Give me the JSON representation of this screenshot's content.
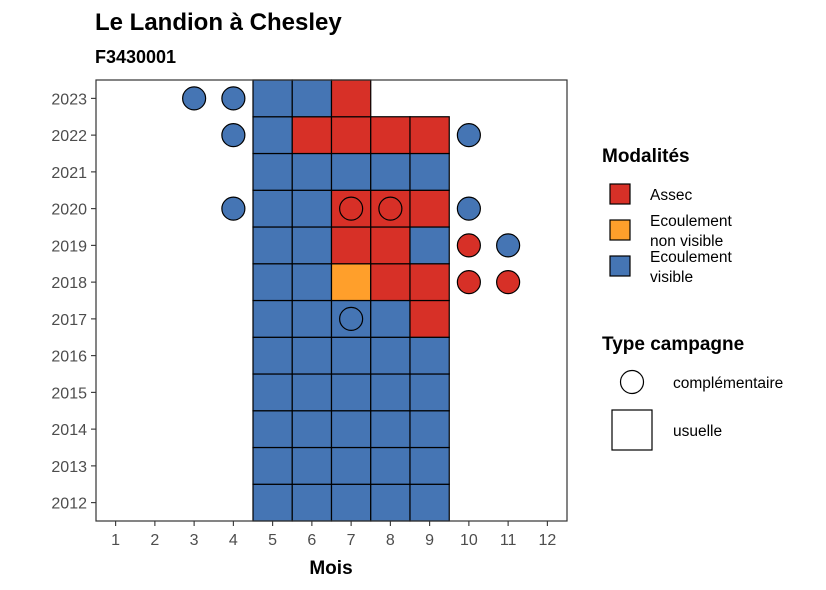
{
  "chart_data": {
    "type": "heatmap",
    "title": "Le Landion à Chesley",
    "subtitle": "F3430001",
    "xlabel": "Mois",
    "ylabel": "",
    "x_ticks": [
      "1",
      "2",
      "3",
      "4",
      "5",
      "6",
      "7",
      "8",
      "9",
      "10",
      "11",
      "12"
    ],
    "y_ticks": [
      "2012",
      "2013",
      "2014",
      "2015",
      "2016",
      "2017",
      "2018",
      "2019",
      "2020",
      "2021",
      "2022",
      "2023"
    ],
    "xlim": [
      0.5,
      12.5
    ],
    "ylim": [
      2011.5,
      2023.5
    ],
    "modalites": [
      {
        "key": "assec",
        "label": [
          "Assec"
        ],
        "color": "#D73027"
      },
      {
        "key": "non_visible",
        "label": [
          "Ecoulement",
          "non visible"
        ],
        "color": "#FF9F2B"
      },
      {
        "key": "visible",
        "label": [
          "Ecoulement",
          "visible"
        ],
        "color": "#4575B4"
      }
    ],
    "types_campagne": [
      {
        "key": "complementaire",
        "label": "complémentaire",
        "shape": "circle"
      },
      {
        "key": "usuelle",
        "label": "usuelle",
        "shape": "square"
      }
    ],
    "legend_titles": {
      "modalites": "Modalités",
      "type": "Type campagne"
    },
    "legend_position": "right",
    "grid": false,
    "observations": [
      {
        "year": 2012,
        "month": 5,
        "modalite": "visible",
        "type": "usuelle"
      },
      {
        "year": 2012,
        "month": 6,
        "modalite": "visible",
        "type": "usuelle"
      },
      {
        "year": 2012,
        "month": 7,
        "modalite": "visible",
        "type": "usuelle"
      },
      {
        "year": 2012,
        "month": 8,
        "modalite": "visible",
        "type": "usuelle"
      },
      {
        "year": 2012,
        "month": 9,
        "modalite": "visible",
        "type": "usuelle"
      },
      {
        "year": 2013,
        "month": 5,
        "modalite": "visible",
        "type": "usuelle"
      },
      {
        "year": 2013,
        "month": 6,
        "modalite": "visible",
        "type": "usuelle"
      },
      {
        "year": 2013,
        "month": 7,
        "modalite": "visible",
        "type": "usuelle"
      },
      {
        "year": 2013,
        "month": 8,
        "modalite": "visible",
        "type": "usuelle"
      },
      {
        "year": 2013,
        "month": 9,
        "modalite": "visible",
        "type": "usuelle"
      },
      {
        "year": 2014,
        "month": 5,
        "modalite": "visible",
        "type": "usuelle"
      },
      {
        "year": 2014,
        "month": 6,
        "modalite": "visible",
        "type": "usuelle"
      },
      {
        "year": 2014,
        "month": 7,
        "modalite": "visible",
        "type": "usuelle"
      },
      {
        "year": 2014,
        "month": 8,
        "modalite": "visible",
        "type": "usuelle"
      },
      {
        "year": 2014,
        "month": 9,
        "modalite": "visible",
        "type": "usuelle"
      },
      {
        "year": 2015,
        "month": 5,
        "modalite": "visible",
        "type": "usuelle"
      },
      {
        "year": 2015,
        "month": 6,
        "modalite": "visible",
        "type": "usuelle"
      },
      {
        "year": 2015,
        "month": 7,
        "modalite": "visible",
        "type": "usuelle"
      },
      {
        "year": 2015,
        "month": 8,
        "modalite": "visible",
        "type": "usuelle"
      },
      {
        "year": 2015,
        "month": 9,
        "modalite": "visible",
        "type": "usuelle"
      },
      {
        "year": 2016,
        "month": 5,
        "modalite": "visible",
        "type": "usuelle"
      },
      {
        "year": 2016,
        "month": 6,
        "modalite": "visible",
        "type": "usuelle"
      },
      {
        "year": 2016,
        "month": 7,
        "modalite": "visible",
        "type": "usuelle"
      },
      {
        "year": 2016,
        "month": 8,
        "modalite": "visible",
        "type": "usuelle"
      },
      {
        "year": 2016,
        "month": 9,
        "modalite": "visible",
        "type": "usuelle"
      },
      {
        "year": 2017,
        "month": 5,
        "modalite": "visible",
        "type": "usuelle"
      },
      {
        "year": 2017,
        "month": 6,
        "modalite": "visible",
        "type": "usuelle"
      },
      {
        "year": 2017,
        "month": 7,
        "modalite": "visible",
        "type": "usuelle"
      },
      {
        "year": 2017,
        "month": 7,
        "modalite": "visible",
        "type": "complementaire"
      },
      {
        "year": 2017,
        "month": 8,
        "modalite": "visible",
        "type": "usuelle"
      },
      {
        "year": 2017,
        "month": 9,
        "modalite": "assec",
        "type": "usuelle"
      },
      {
        "year": 2018,
        "month": 5,
        "modalite": "visible",
        "type": "usuelle"
      },
      {
        "year": 2018,
        "month": 6,
        "modalite": "visible",
        "type": "usuelle"
      },
      {
        "year": 2018,
        "month": 7,
        "modalite": "non_visible",
        "type": "usuelle"
      },
      {
        "year": 2018,
        "month": 8,
        "modalite": "assec",
        "type": "usuelle"
      },
      {
        "year": 2018,
        "month": 9,
        "modalite": "assec",
        "type": "usuelle"
      },
      {
        "year": 2018,
        "month": 10,
        "modalite": "assec",
        "type": "complementaire"
      },
      {
        "year": 2018,
        "month": 11,
        "modalite": "assec",
        "type": "complementaire"
      },
      {
        "year": 2019,
        "month": 5,
        "modalite": "visible",
        "type": "usuelle"
      },
      {
        "year": 2019,
        "month": 6,
        "modalite": "visible",
        "type": "usuelle"
      },
      {
        "year": 2019,
        "month": 7,
        "modalite": "assec",
        "type": "usuelle"
      },
      {
        "year": 2019,
        "month": 8,
        "modalite": "assec",
        "type": "usuelle"
      },
      {
        "year": 2019,
        "month": 9,
        "modalite": "visible",
        "type": "usuelle"
      },
      {
        "year": 2019,
        "month": 10,
        "modalite": "assec",
        "type": "complementaire"
      },
      {
        "year": 2019,
        "month": 11,
        "modalite": "visible",
        "type": "complementaire"
      },
      {
        "year": 2020,
        "month": 4,
        "modalite": "visible",
        "type": "complementaire"
      },
      {
        "year": 2020,
        "month": 5,
        "modalite": "visible",
        "type": "usuelle"
      },
      {
        "year": 2020,
        "month": 6,
        "modalite": "visible",
        "type": "usuelle"
      },
      {
        "year": 2020,
        "month": 7,
        "modalite": "assec",
        "type": "usuelle"
      },
      {
        "year": 2020,
        "month": 7,
        "modalite": "assec",
        "type": "complementaire"
      },
      {
        "year": 2020,
        "month": 8,
        "modalite": "assec",
        "type": "usuelle"
      },
      {
        "year": 2020,
        "month": 8,
        "modalite": "assec",
        "type": "complementaire"
      },
      {
        "year": 2020,
        "month": 9,
        "modalite": "assec",
        "type": "usuelle"
      },
      {
        "year": 2020,
        "month": 10,
        "modalite": "visible",
        "type": "complementaire"
      },
      {
        "year": 2021,
        "month": 5,
        "modalite": "visible",
        "type": "usuelle"
      },
      {
        "year": 2021,
        "month": 6,
        "modalite": "visible",
        "type": "usuelle"
      },
      {
        "year": 2021,
        "month": 7,
        "modalite": "visible",
        "type": "usuelle"
      },
      {
        "year": 2021,
        "month": 8,
        "modalite": "visible",
        "type": "usuelle"
      },
      {
        "year": 2021,
        "month": 9,
        "modalite": "visible",
        "type": "usuelle"
      },
      {
        "year": 2022,
        "month": 4,
        "modalite": "visible",
        "type": "complementaire"
      },
      {
        "year": 2022,
        "month": 5,
        "modalite": "visible",
        "type": "usuelle"
      },
      {
        "year": 2022,
        "month": 6,
        "modalite": "assec",
        "type": "usuelle"
      },
      {
        "year": 2022,
        "month": 7,
        "modalite": "assec",
        "type": "usuelle"
      },
      {
        "year": 2022,
        "month": 8,
        "modalite": "assec",
        "type": "usuelle"
      },
      {
        "year": 2022,
        "month": 9,
        "modalite": "assec",
        "type": "usuelle"
      },
      {
        "year": 2022,
        "month": 10,
        "modalite": "visible",
        "type": "complementaire"
      },
      {
        "year": 2023,
        "month": 3,
        "modalite": "visible",
        "type": "complementaire"
      },
      {
        "year": 2023,
        "month": 4,
        "modalite": "visible",
        "type": "complementaire"
      },
      {
        "year": 2023,
        "month": 5,
        "modalite": "visible",
        "type": "usuelle"
      },
      {
        "year": 2023,
        "month": 6,
        "modalite": "visible",
        "type": "usuelle"
      },
      {
        "year": 2023,
        "month": 7,
        "modalite": "assec",
        "type": "usuelle"
      }
    ]
  }
}
